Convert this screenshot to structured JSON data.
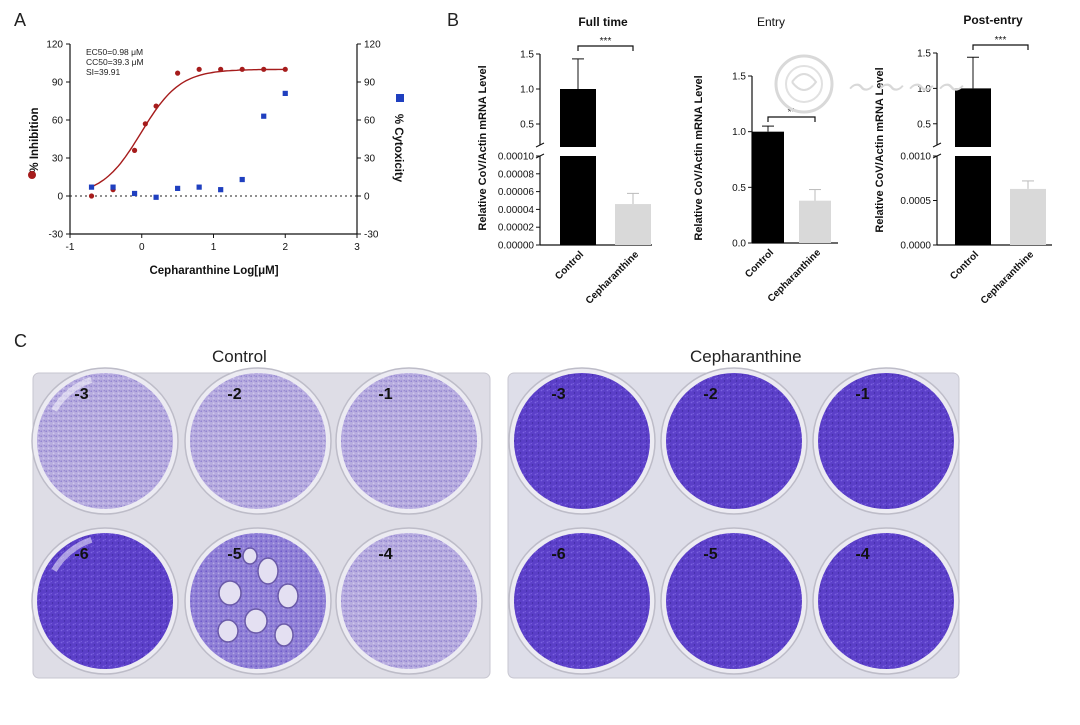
{
  "panels": {
    "a": "A",
    "b": "B",
    "c": "C"
  },
  "panel_a": {
    "stats": [
      "EC50=0.98 μM",
      "CC50=39.3 μM",
      "SI=39.91"
    ],
    "xlabel": "Cepharanthine Log[μM]",
    "ylabel_left": "% Inhibition",
    "ylabel_right": "% Cytoxicity",
    "legend_inhibition_color": "#a61c1c",
    "legend_cytotoxicity_color": "#1f3fbf"
  },
  "panel_b_titles": [
    "Full time",
    "Entry",
    "Post-entry"
  ],
  "panel_b_ylabel": "Relative CoV/Actin mRNA Level",
  "panel_c": {
    "control_title": "Control",
    "treated_title": "Cepharanthine",
    "well_labels_top": [
      "-3",
      "-2",
      "-1"
    ],
    "well_labels_bottom": [
      "-6",
      "-5",
      "-4"
    ],
    "stain_color": "#5b3fc8"
  },
  "chart_data": [
    {
      "type": "scatter",
      "id": "dose-response",
      "xlabel": "Cepharanthine Log[μM]",
      "ylabel": "% Inhibition",
      "y2label": "% Cytoxicity",
      "xlim": [
        -1,
        3
      ],
      "ylim": [
        -30,
        120
      ],
      "y2lim": [
        -30,
        120
      ],
      "xticks": [
        "-1",
        "0",
        "1",
        "2",
        "3"
      ],
      "yticks": [
        "-30",
        "0",
        "30",
        "60",
        "90",
        "120"
      ],
      "y2ticks": [
        "-30",
        "0",
        "30",
        "60",
        "90",
        "120"
      ],
      "series": [
        {
          "marker": "circle",
          "color": "#a61c1c",
          "axis": "left",
          "x": [
            -0.7,
            -0.4,
            -0.1,
            0.05,
            0.2,
            0.5,
            0.8,
            1.1,
            1.4,
            1.7,
            2.0
          ],
          "y": [
            0,
            5,
            36,
            57,
            71,
            97,
            100,
            100,
            100,
            100,
            100
          ]
        },
        {
          "marker": "square",
          "color": "#1f3fbf",
          "axis": "right",
          "x": [
            -0.7,
            -0.4,
            -0.1,
            0.2,
            0.5,
            0.8,
            1.1,
            1.4,
            1.7,
            2.0
          ],
          "y": [
            7,
            7,
            2,
            -1,
            6,
            7,
            5,
            13,
            63,
            81
          ]
        }
      ],
      "fit": {
        "color": "#a61c1c",
        "bottom": 0,
        "top": 100,
        "logEC50": -0.009,
        "hill": 1.6
      },
      "reference_line": 0
    },
    {
      "type": "bar",
      "id": "full-time",
      "title": "Full time",
      "ylabel": "Relative CoV/Actin mRNA Level",
      "categories": [
        "Control",
        "Cepharanthine"
      ],
      "values": [
        1.0,
        4.6e-05
      ],
      "errors": [
        0.43,
        1.2e-05
      ],
      "colors": [
        "#000000",
        "#d9d9d9"
      ],
      "broken_axis": true,
      "upper_range": [
        0.2,
        1.5
      ],
      "upper_ticks": [
        "0.5",
        "1.0",
        "1.5"
      ],
      "lower_range": [
        0,
        0.0001
      ],
      "lower_ticks": [
        "0.00000",
        "0.00002",
        "0.00004",
        "0.00006",
        "0.00008",
        "0.00010"
      ],
      "significance": "***"
    },
    {
      "type": "bar",
      "id": "entry",
      "title": "Entry",
      "ylabel": "Relative CoV/Actin mRNA Level",
      "categories": [
        "Control",
        "Cepharanthine"
      ],
      "values": [
        1.0,
        0.38
      ],
      "errors": [
        0.05,
        0.1
      ],
      "colors": [
        "#000000",
        "#d9d9d9"
      ],
      "broken_axis": false,
      "ylim": [
        0,
        1.5
      ],
      "yticks": [
        "0.0",
        "0.5",
        "1.0",
        "1.5"
      ],
      "significance": "**"
    },
    {
      "type": "bar",
      "id": "post-entry",
      "title": "Post-entry",
      "ylabel": "Relative CoV/Actin mRNA Level",
      "categories": [
        "Control",
        "Cepharanthine"
      ],
      "values": [
        1.0,
        0.00063
      ],
      "errors": [
        0.44,
        9e-05
      ],
      "colors": [
        "#000000",
        "#d9d9d9"
      ],
      "broken_axis": true,
      "upper_range": [
        0.2,
        1.5
      ],
      "upper_ticks": [
        "0.5",
        "1.0",
        "1.5"
      ],
      "lower_range": [
        0,
        0.001
      ],
      "lower_ticks": [
        "0.0000",
        "0.0005",
        "0.0010"
      ],
      "significance": "***"
    }
  ]
}
